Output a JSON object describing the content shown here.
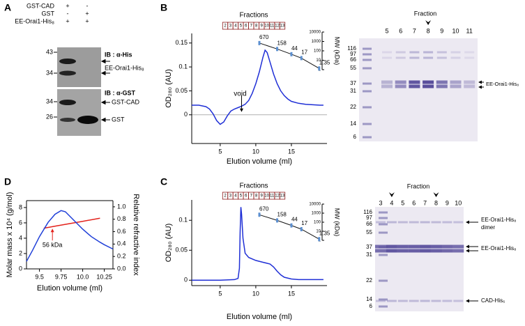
{
  "panel_labels": [
    "A",
    "B",
    "C",
    "D"
  ],
  "blot": {
    "conditions": [
      {
        "name": "GST-CAD",
        "lanes": [
          "+",
          "-"
        ]
      },
      {
        "name": "GST",
        "lanes": [
          "-",
          "+"
        ]
      },
      {
        "name": "EE-Orai1-His₈",
        "lanes": [
          "+",
          "+"
        ]
      }
    ],
    "panels": [
      {
        "antibody": "IB : α-His",
        "mw_markers": [
          "43",
          "34"
        ],
        "bands": [
          "EE-Orai1-His₈"
        ]
      },
      {
        "antibody": "IB : α-GST",
        "mw_markers": [
          "34",
          "26"
        ],
        "bands": [
          "GST-CAD",
          "GST"
        ]
      }
    ]
  },
  "gels": [
    {
      "header": "Fraction",
      "lanes": [
        "5",
        "6",
        "7",
        "8",
        "9",
        "10",
        "11"
      ],
      "mw_markers": [
        "116",
        "97",
        "66",
        "55",
        "37",
        "31",
        "22",
        "14",
        "6"
      ],
      "bands": [
        [
          "EE-Orai1-His₈"
        ]
      ]
    },
    {
      "header": "Fraction",
      "lanes": [
        "3",
        "4",
        "5",
        "6",
        "7",
        "8",
        "9",
        "10"
      ],
      "mw_markers": [
        "116",
        "97",
        "66",
        "55",
        "37",
        "31",
        "22",
        "14",
        "6"
      ],
      "bands": [
        [
          "EE-Orai1-His₈",
          "dimer"
        ],
        [
          "EE-Orai1-His₈"
        ],
        [
          "CAD-His₆"
        ]
      ]
    }
  ],
  "chart_data": [
    {
      "type": "line",
      "x_label": "Elution volume (ml)",
      "y_label": "OD₂₈₀ (AU)",
      "xlim": [
        1,
        20
      ],
      "xticks": [
        5,
        10,
        15
      ],
      "ylim": [
        -0.06,
        0.17
      ],
      "yticks": [
        0,
        0.05,
        0.1,
        0.15
      ],
      "zero_line": true,
      "y2_label": "MW (kDa)",
      "y2lim": [
        1,
        10000
      ],
      "y2ticks": [
        1,
        10,
        100,
        1000,
        10000
      ],
      "y2_log": true,
      "fraction_label": "Fractions",
      "fractions": [
        "2",
        "3",
        "4",
        "5",
        "6",
        "7",
        "8",
        "9",
        "10",
        "11",
        "12",
        "13"
      ],
      "series": [
        {
          "color": "#1f2fd6",
          "x": [
            1,
            2,
            3,
            3.5,
            4,
            4.5,
            5,
            5.5,
            6,
            6.5,
            7,
            7.5,
            8,
            8.5,
            9,
            9.5,
            10,
            10.5,
            11,
            11.3,
            11.6,
            12,
            12.5,
            13,
            13.5,
            14,
            14.5,
            15,
            16,
            17,
            18,
            19,
            19.5
          ],
          "values": [
            0.02,
            0.02,
            0.017,
            0.012,
            0.002,
            -0.012,
            -0.02,
            -0.015,
            -0.002,
            0.008,
            0.012,
            0.015,
            0.018,
            0.022,
            0.03,
            0.045,
            0.065,
            0.09,
            0.12,
            0.135,
            0.13,
            0.11,
            0.085,
            0.065,
            0.05,
            0.04,
            0.033,
            0.028,
            0.024,
            0.022,
            0.021,
            0.02,
            0.02
          ]
        },
        {
          "axis": "y2",
          "color": "#111111",
          "show_values": true,
          "x": [
            10.5,
            13,
            15,
            16.4,
            18.9
          ],
          "values": [
            670,
            158,
            44,
            17,
            1.35
          ]
        }
      ],
      "annotations": [
        {
          "text": "void",
          "x": 8,
          "color": "#000000"
        }
      ]
    },
    {
      "type": "line",
      "x_label": "Elution volume (ml)",
      "y_label": "Molar mass x 10⁴ (g/mol)",
      "y_color": "#e3211b",
      "y2_label": "Relative refractive index",
      "y2_color": "#1f3fd8",
      "xlim": [
        9.35,
        10.35
      ],
      "xticks": [
        9.5,
        9.75,
        {
          "value": 10,
          "label": "10.0"
        },
        10.25
      ],
      "ylim": [
        0,
        8.9
      ],
      "yticks": [
        0,
        2,
        4,
        6,
        8
      ],
      "y2lim": [
        0,
        1.1
      ],
      "y2ticks": [
        {
          "value": 0,
          "label": "0.0"
        },
        0.2,
        0.4,
        0.6,
        0.8,
        {
          "value": 1,
          "label": "1.0"
        }
      ],
      "series": [
        {
          "color": "#e3211b",
          "x": [
            9.55,
            9.7,
            9.85,
            10,
            10.2
          ],
          "values": [
            5.3,
            5.6,
            5.9,
            6.2,
            6.6
          ]
        },
        {
          "axis": "y2",
          "color": "#1f3fd8",
          "x": [
            9.35,
            9.42,
            9.5,
            9.6,
            9.68,
            9.75,
            9.8,
            9.9,
            10,
            10.1,
            10.2,
            10.25,
            10.35
          ],
          "values": [
            0.12,
            0.3,
            0.52,
            0.75,
            0.88,
            0.94,
            0.92,
            0.78,
            0.64,
            0.52,
            0.43,
            0.39,
            0.32
          ]
        }
      ],
      "annotations": [
        {
          "text": "56 kDa",
          "x": 9.65,
          "color": "#e3211b"
        }
      ]
    },
    {
      "type": "line",
      "x_label": "Elution volume (ml)",
      "y_label": "OD₂₈₀ (AU)",
      "xlim": [
        1,
        20
      ],
      "xticks": [
        5,
        10,
        15
      ],
      "ylim": [
        -0.009,
        0.134
      ],
      "yticks": [
        0,
        0.05,
        0.1
      ],
      "y2_label": "MW (kDa)",
      "y2lim": [
        1,
        10000
      ],
      "y2ticks": [
        1,
        10,
        100,
        1000,
        10000
      ],
      "y2_log": true,
      "fraction_label": "Fractions",
      "fractions": [
        "2",
        "3",
        "4",
        "5",
        "6",
        "7",
        "8",
        "9",
        "10",
        "11",
        "12",
        "13"
      ],
      "series": [
        {
          "color": "#1f2fd6",
          "x": [
            1,
            3,
            5,
            7,
            7.5,
            7.7,
            7.8,
            7.9,
            8,
            8.2,
            8.5,
            9,
            10,
            11,
            12,
            12.5,
            13,
            13.5,
            14,
            15,
            16,
            18,
            19.5
          ],
          "values": [
            0,
            0,
            0,
            0.001,
            0.003,
            0.02,
            0.08,
            0.122,
            0.11,
            0.07,
            0.045,
            0.038,
            0.033,
            0.03,
            0.027,
            0.022,
            0.015,
            0.009,
            0.005,
            0.002,
            0.001,
            0.001,
            0.001
          ]
        },
        {
          "axis": "y2",
          "color": "#111111",
          "show_values": true,
          "x": [
            10.5,
            13,
            15,
            16.4,
            18.9
          ],
          "values": [
            670,
            158,
            44,
            17,
            1.35
          ]
        }
      ]
    }
  ]
}
